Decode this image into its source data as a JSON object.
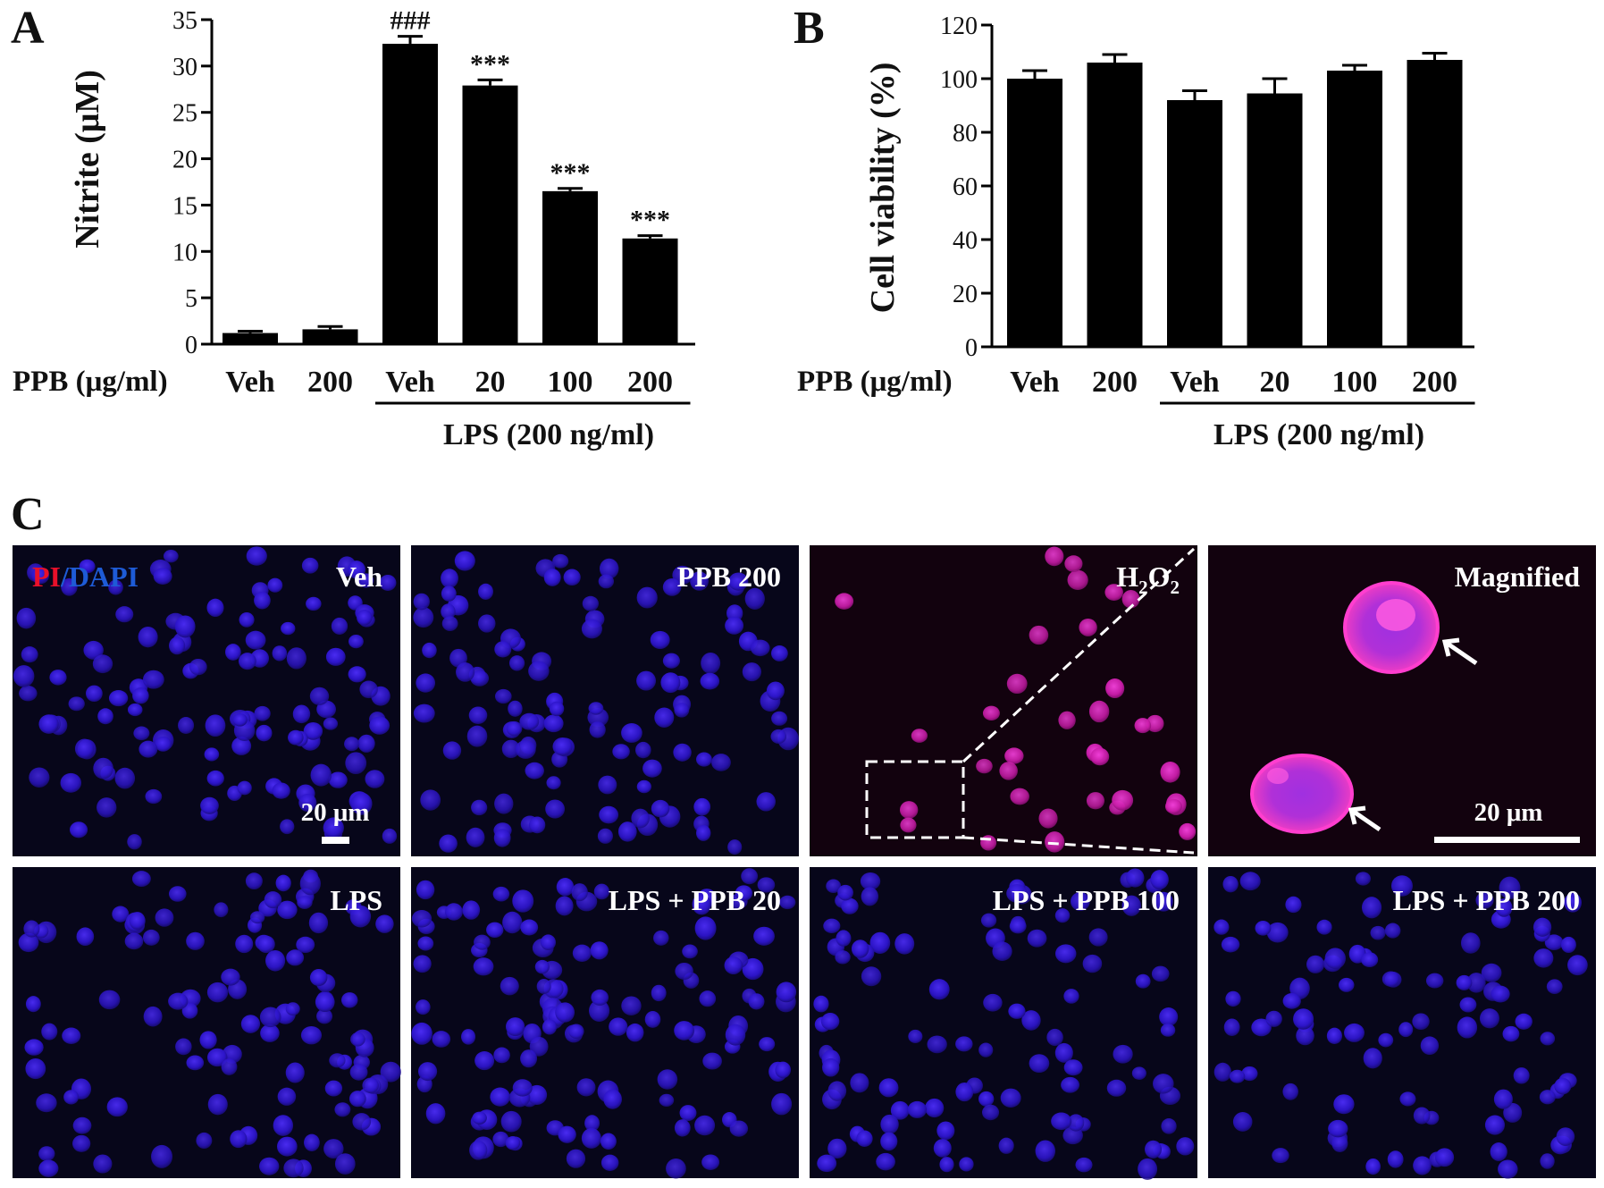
{
  "panels": {
    "a_letter": "A",
    "b_letter": "B",
    "c_letter": "C"
  },
  "chart_data": [
    {
      "panel": "A",
      "type": "bar",
      "ylabel": "Nitrite (μM)",
      "ylim": [
        0,
        35
      ],
      "yticks": [
        0,
        5,
        10,
        15,
        20,
        25,
        30,
        35
      ],
      "categories": [
        "Veh",
        "200",
        "Veh",
        "20",
        "100",
        "200"
      ],
      "values": [
        1.2,
        1.6,
        32.4,
        27.9,
        16.5,
        11.4
      ],
      "errors": [
        0.2,
        0.3,
        0.8,
        0.6,
        0.3,
        0.3
      ],
      "annotations": [
        "",
        "",
        "###",
        "***",
        "***",
        "***"
      ],
      "row_label": "PPB (μg/ml)",
      "group_label": "LPS (200 ng/ml)",
      "group_span": [
        2,
        5
      ]
    },
    {
      "panel": "B",
      "type": "bar",
      "ylabel": "Cell viability (%)",
      "ylim": [
        0,
        120
      ],
      "yticks": [
        0,
        20,
        40,
        60,
        80,
        100,
        120
      ],
      "categories": [
        "Veh",
        "200",
        "Veh",
        "20",
        "100",
        "200"
      ],
      "values": [
        100,
        106,
        92,
        94.5,
        103,
        107
      ],
      "errors": [
        3,
        3,
        3.5,
        5.5,
        2,
        2.5
      ],
      "annotations": [
        "",
        "",
        "",
        "",
        "",
        ""
      ],
      "row_label": "PPB (μg/ml)",
      "group_label": "LPS (200 ng/ml)",
      "group_span": [
        2,
        5
      ]
    }
  ],
  "micrographs": {
    "stain_pi": "PI",
    "stain_sep": "/",
    "stain_dapi": "DAPI",
    "stain_pi_color": "#e8102a",
    "stain_dapi_color": "#1e5bd6",
    "panels": [
      {
        "label": "Veh",
        "stain": "blue"
      },
      {
        "label": "PPB 200",
        "stain": "blue"
      },
      {
        "label_main": "H",
        "label_sub1": "2",
        "label_mid": "O",
        "label_sub2": "2",
        "stain": "pink"
      },
      {
        "label": "Magnified",
        "stain": "pink"
      },
      {
        "label": "LPS",
        "stain": "blue"
      },
      {
        "label": "LPS + PPB 20",
        "stain": "blue"
      },
      {
        "label": "LPS + PPB 100",
        "stain": "blue"
      },
      {
        "label": "LPS + PPB 200",
        "stain": "blue"
      }
    ],
    "scale_bar_1": "20 μm",
    "scale_bar_2": "20 μm"
  }
}
